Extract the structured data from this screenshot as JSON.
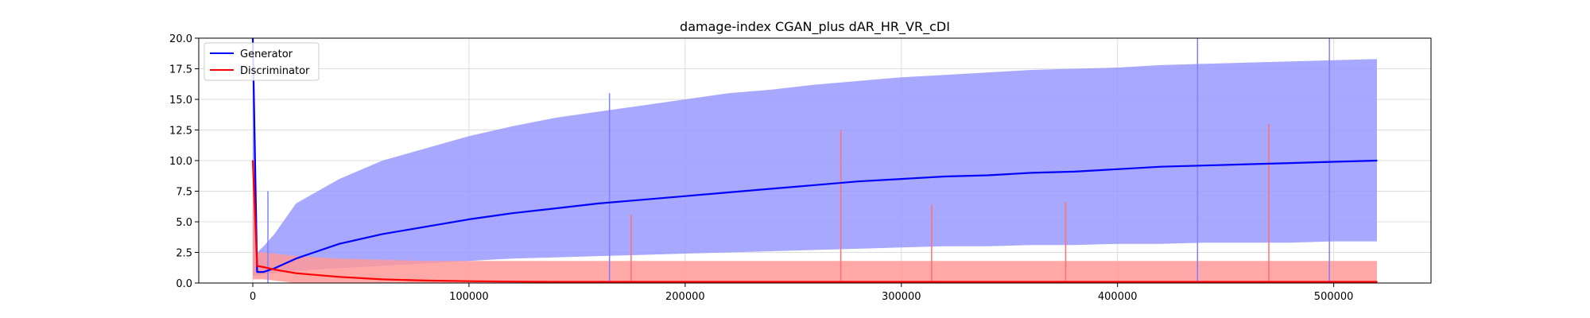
{
  "chart_data": {
    "type": "line",
    "title": "damage-index   CGAN_plus    dAR_HR_VR_cDI",
    "xlabel": "",
    "ylabel": "",
    "xlim": [
      -25000,
      545000
    ],
    "ylim": [
      0,
      20
    ],
    "xticks": [
      0,
      100000,
      200000,
      300000,
      400000,
      500000
    ],
    "xtick_labels": [
      "0",
      "100000",
      "200000",
      "300000",
      "400000",
      "500000"
    ],
    "yticks": [
      0,
      2.5,
      5,
      7.5,
      10,
      12.5,
      15,
      17.5,
      20
    ],
    "ytick_labels": [
      "0.0",
      "2.5",
      "5.0",
      "7.5",
      "10.0",
      "12.5",
      "15.0",
      "17.5",
      "20.0"
    ],
    "grid": true,
    "legend_position": "upper-left",
    "series": [
      {
        "name": "Generator",
        "color": "#0000ff",
        "band_color": "#9999ff",
        "x": [
          0,
          2000,
          5000,
          10000,
          20000,
          40000,
          60000,
          80000,
          100000,
          120000,
          140000,
          160000,
          180000,
          200000,
          220000,
          240000,
          260000,
          280000,
          300000,
          320000,
          340000,
          360000,
          380000,
          400000,
          420000,
          440000,
          460000,
          480000,
          500000,
          520000
        ],
        "values": [
          20.0,
          0.9,
          0.9,
          1.2,
          2.0,
          3.2,
          4.0,
          4.6,
          5.2,
          5.7,
          6.1,
          6.5,
          6.8,
          7.1,
          7.4,
          7.7,
          8.0,
          8.3,
          8.5,
          8.7,
          8.8,
          9.0,
          9.1,
          9.3,
          9.5,
          9.6,
          9.7,
          9.8,
          9.9,
          10.0
        ],
        "band_upper": [
          20.0,
          2.5,
          3.0,
          4.0,
          6.5,
          8.5,
          10.0,
          11.0,
          12.0,
          12.8,
          13.5,
          14.0,
          14.5,
          15.0,
          15.5,
          15.8,
          16.2,
          16.5,
          16.8,
          17.0,
          17.2,
          17.4,
          17.5,
          17.6,
          17.8,
          17.9,
          18.0,
          18.1,
          18.2,
          18.3
        ],
        "band_lower": [
          0.6,
          0.6,
          0.7,
          0.8,
          1.0,
          1.2,
          1.4,
          1.6,
          1.8,
          2.0,
          2.1,
          2.2,
          2.3,
          2.4,
          2.5,
          2.6,
          2.7,
          2.8,
          2.9,
          3.0,
          3.0,
          3.1,
          3.1,
          3.2,
          3.2,
          3.3,
          3.3,
          3.3,
          3.4,
          3.4
        ]
      },
      {
        "name": "Discriminator",
        "color": "#ff0000",
        "band_color": "#ff9999",
        "x": [
          0,
          2000,
          5000,
          10000,
          20000,
          40000,
          60000,
          80000,
          100000,
          120000,
          140000,
          160000,
          180000,
          200000,
          220000,
          240000,
          260000,
          280000,
          300000,
          320000,
          340000,
          360000,
          380000,
          400000,
          420000,
          440000,
          460000,
          480000,
          500000,
          520000
        ],
        "values": [
          10.0,
          1.4,
          1.3,
          1.1,
          0.8,
          0.5,
          0.3,
          0.2,
          0.15,
          0.12,
          0.1,
          0.1,
          0.1,
          0.1,
          0.1,
          0.1,
          0.1,
          0.1,
          0.1,
          0.1,
          0.1,
          0.1,
          0.1,
          0.1,
          0.1,
          0.1,
          0.1,
          0.1,
          0.1,
          0.1
        ],
        "band_upper": [
          10.0,
          2.5,
          2.5,
          2.4,
          2.2,
          2.0,
          1.9,
          1.8,
          1.8,
          1.8,
          1.8,
          1.8,
          1.8,
          1.8,
          1.8,
          1.8,
          1.8,
          1.8,
          1.8,
          1.8,
          1.8,
          1.8,
          1.8,
          1.8,
          1.8,
          1.8,
          1.8,
          1.8,
          1.8,
          1.8
        ],
        "band_lower": [
          0.3,
          0.3,
          0.3,
          0.2,
          0.0,
          0.0,
          0.0,
          0.0,
          0.0,
          0.0,
          0.0,
          0.0,
          0.0,
          0.0,
          0.0,
          0.0,
          0.0,
          0.0,
          0.0,
          0.0,
          0.0,
          0.0,
          0.0,
          0.0,
          0.0,
          0.0,
          0.0,
          0.0,
          0.0,
          0.0
        ]
      }
    ],
    "spikes": [
      {
        "series": "Generator",
        "x": 7000,
        "y": 7.5
      },
      {
        "series": "Generator",
        "x": 165000,
        "y": 15.5
      },
      {
        "series": "Generator",
        "x": 437000,
        "y": 20.0
      },
      {
        "series": "Generator",
        "x": 498000,
        "y": 20.0
      },
      {
        "series": "Discriminator",
        "x": 175000,
        "y": 5.6
      },
      {
        "series": "Discriminator",
        "x": 272000,
        "y": 12.5
      },
      {
        "series": "Discriminator",
        "x": 314000,
        "y": 6.4
      },
      {
        "series": "Discriminator",
        "x": 376000,
        "y": 6.6
      },
      {
        "series": "Discriminator",
        "x": 470000,
        "y": 13.0
      }
    ]
  }
}
